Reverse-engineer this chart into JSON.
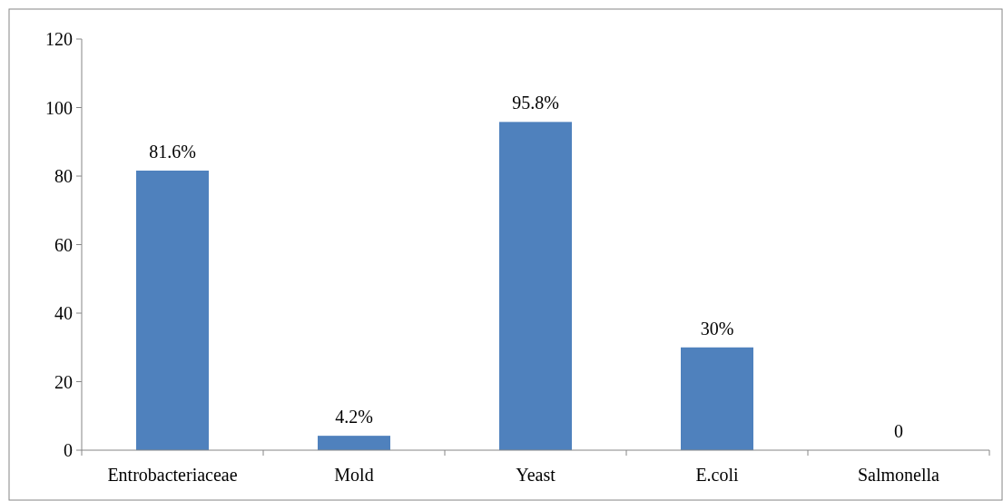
{
  "chart_data": {
    "type": "bar",
    "categories": [
      "Entrobacteriaceae",
      "Mold",
      "Yeast",
      "E.coli",
      "Salmonella"
    ],
    "values": [
      81.6,
      4.2,
      95.8,
      30,
      0
    ],
    "color": "#4f81bd",
    "value_labels": [
      "81.6%",
      "4.2%",
      "95.8%",
      "30%",
      "0"
    ],
    "ylim": [
      0,
      120
    ],
    "yticks": [
      0,
      20,
      40,
      60,
      80,
      100,
      120
    ],
    "grid": false
  }
}
